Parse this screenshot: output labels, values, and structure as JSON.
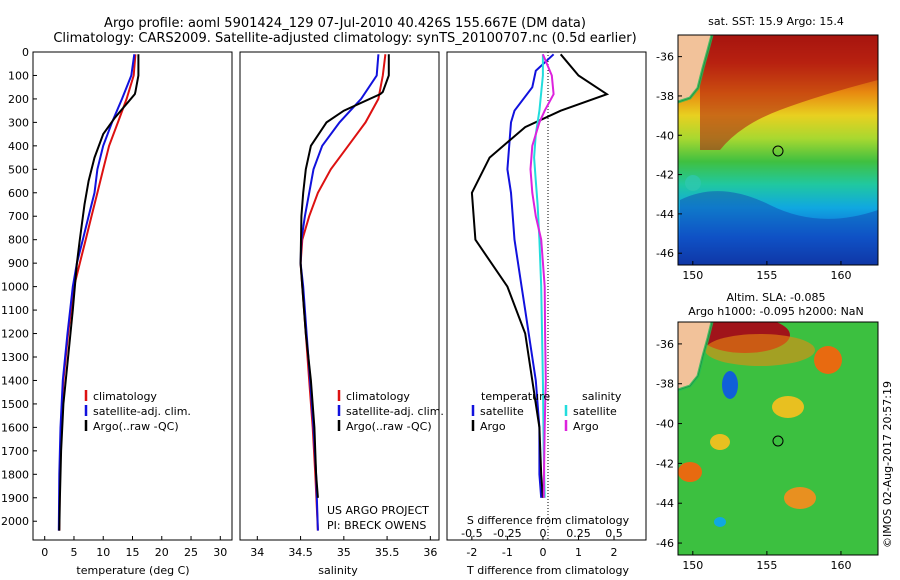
{
  "title_line1": "Argo profile: aoml 5901424_129 07-Jul-2010 40.426S 155.667E (DM data)",
  "title_line2": "Climatology: CARS2009. Satellite-adjusted climatology: synTS_20100707.nc (0.5d earlier)",
  "colors": {
    "climatology": "#dd1111",
    "satellite": "#1111dd",
    "argo": "#000000",
    "sat_salinity": "#22dddd",
    "argo_salinity": "#dd22dd",
    "land": "#f2c29a",
    "coast": "#22bb55"
  },
  "chart_data": [
    {
      "type": "line",
      "xlabel": "temperature (deg C)",
      "xlim": [
        -2,
        32
      ],
      "ylim": [
        2080,
        0
      ],
      "xticks": [
        "0",
        "5",
        "10",
        "15",
        "20",
        "25",
        "30"
      ],
      "yticks": [
        "0",
        "100",
        "200",
        "300",
        "400",
        "500",
        "600",
        "700",
        "800",
        "900",
        "1000",
        "1100",
        "1200",
        "1300",
        "1400",
        "1500",
        "1600",
        "1700",
        "1800",
        "1900",
        "2000"
      ],
      "legend": [
        "climatology",
        "satellite-adj. clim.",
        "Argo(..raw -QC)"
      ],
      "series": [
        {
          "name": "climatology",
          "color": "#dd1111",
          "x": [
            15.5,
            15.2,
            14.0,
            12.5,
            11.0,
            10.0,
            9.0,
            8.0,
            7.0,
            6.0,
            5.0,
            4.0,
            3.2,
            2.8,
            2.6,
            2.5
          ],
          "y": [
            10,
            100,
            200,
            300,
            400,
            500,
            600,
            700,
            800,
            900,
            1000,
            1200,
            1400,
            1600,
            1800,
            2040
          ]
        },
        {
          "name": "satellite-adj. clim.",
          "color": "#1111dd",
          "x": [
            15.3,
            14.8,
            13.2,
            11.5,
            10.0,
            9.0,
            8.5,
            7.5,
            6.5,
            5.5,
            4.8,
            3.9,
            3.1,
            2.7,
            2.5,
            2.4
          ],
          "y": [
            10,
            100,
            200,
            300,
            400,
            500,
            600,
            700,
            800,
            900,
            1000,
            1200,
            1400,
            1600,
            1800,
            2040
          ]
        },
        {
          "name": "Argo(..raw -QC)",
          "color": "#000000",
          "x": [
            16.0,
            16.0,
            15.5,
            15.4,
            12.0,
            10.0,
            8.5,
            7.5,
            6.8,
            6.0,
            5.5,
            4.8,
            4.0,
            3.2,
            2.8,
            2.6,
            2.5
          ],
          "y": [
            10,
            100,
            170,
            180,
            280,
            350,
            450,
            550,
            650,
            800,
            900,
            1100,
            1300,
            1500,
            1700,
            1900,
            2040
          ]
        }
      ]
    },
    {
      "type": "line",
      "xlabel": "salinity",
      "xlim": [
        33.8,
        36.1
      ],
      "ylim": [
        2080,
        0
      ],
      "xticks": [
        "34",
        "34.5",
        "35",
        "35.5",
        "36"
      ],
      "legend": [
        "climatology",
        "satellite-adj. clim.",
        "Argo(..raw -QC)"
      ],
      "annotations": [
        "US ARGO PROJECT",
        "PI: BRECK OWENS"
      ],
      "series": [
        {
          "name": "climatology",
          "color": "#dd1111",
          "x": [
            35.48,
            35.45,
            35.4,
            35.25,
            35.05,
            34.85,
            34.7,
            34.6,
            34.52,
            34.5,
            34.52,
            34.56,
            34.6,
            34.64,
            34.67,
            34.7
          ],
          "y": [
            10,
            100,
            200,
            300,
            400,
            500,
            600,
            700,
            800,
            900,
            1000,
            1200,
            1400,
            1600,
            1800,
            2040
          ]
        },
        {
          "name": "satellite-adj. clim.",
          "color": "#1111dd",
          "x": [
            35.4,
            35.38,
            35.2,
            34.95,
            34.75,
            34.65,
            34.6,
            34.55,
            34.51,
            34.5,
            34.53,
            34.57,
            34.61,
            34.65,
            34.68,
            34.7
          ],
          "y": [
            10,
            100,
            200,
            300,
            400,
            500,
            600,
            700,
            800,
            900,
            1000,
            1200,
            1400,
            1600,
            1800,
            2040
          ]
        },
        {
          "name": "Argo(..raw -QC)",
          "color": "#000000",
          "x": [
            35.52,
            35.52,
            35.45,
            35.42,
            35.0,
            34.8,
            34.62,
            34.56,
            34.53,
            34.51,
            34.5,
            34.52,
            34.56,
            34.62,
            34.66,
            34.68,
            34.7
          ],
          "y": [
            10,
            100,
            170,
            180,
            250,
            300,
            400,
            500,
            600,
            700,
            900,
            1000,
            1200,
            1400,
            1600,
            1800,
            1900
          ]
        }
      ]
    },
    {
      "type": "line",
      "xlabel": "T difference from climatology",
      "x2label": "S difference from climatology",
      "xlim": [
        -2.7,
        2.9
      ],
      "ylim": [
        2080,
        0
      ],
      "xticks": [
        "-2",
        "-1",
        "0",
        "1",
        "2"
      ],
      "x2ticks": [
        "-0.5",
        "-0.25",
        "0",
        "0.25",
        "0.5"
      ],
      "legend_groups": [
        "temperature",
        "salinity"
      ],
      "legend": [
        "satellite",
        "Argo",
        "satellite",
        "Argo"
      ],
      "series": [
        {
          "name": "satellite",
          "color": "#1111dd",
          "x": [
            0.3,
            -0.2,
            -0.3,
            -0.8,
            -0.9,
            -0.95,
            -1.0,
            -0.9,
            -0.8,
            -0.6,
            -0.5,
            -0.4,
            -0.2,
            -0.1,
            -0.1,
            -0.05
          ],
          "y": [
            10,
            80,
            150,
            250,
            300,
            400,
            500,
            600,
            800,
            1000,
            1100,
            1200,
            1400,
            1600,
            1800,
            1900
          ]
        },
        {
          "name": "Argo",
          "color": "#000000",
          "x": [
            0.5,
            1.0,
            1.8,
            0.5,
            -0.5,
            -1.5,
            -2.0,
            -1.9,
            -1.0,
            -0.5,
            -0.3,
            -0.2,
            -0.1,
            -0.05,
            0.0
          ],
          "y": [
            10,
            100,
            180,
            250,
            320,
            450,
            600,
            800,
            1000,
            1200,
            1400,
            1500,
            1600,
            1800,
            1900
          ]
        },
        {
          "name": "satellite",
          "color": "#22dddd",
          "x": [
            0.0,
            0.0,
            -0.1,
            -0.2,
            -0.25,
            -0.2,
            -0.15,
            -0.1,
            -0.05,
            0.0,
            0.02,
            0.05
          ],
          "y": [
            10,
            100,
            250,
            350,
            450,
            550,
            650,
            800,
            1000,
            1400,
            1700,
            1900
          ]
        },
        {
          "name": "Argo",
          "color": "#dd22dd",
          "x": [
            0.0,
            0.25,
            0.3,
            0.05,
            -0.1,
            -0.3,
            -0.35,
            -0.3,
            -0.2,
            -0.05,
            0.05,
            0.06,
            0.08,
            0.05,
            0.03,
            0.02
          ],
          "y": [
            10,
            100,
            180,
            250,
            300,
            400,
            500,
            600,
            700,
            800,
            1000,
            1200,
            1400,
            1600,
            1800,
            1900
          ]
        }
      ]
    }
  ],
  "map_top": {
    "title": "sat. SST: 15.9 Argo: 15.4",
    "xticks": [
      "150",
      "155",
      "160"
    ],
    "yticks": [
      "-36",
      "-38",
      "-40",
      "-42",
      "-44",
      "-46"
    ]
  },
  "map_bottom": {
    "title_line1": "Altim. SLA: -0.085",
    "title_line2": "Argo h1000: -0.095 h2000: NaN",
    "xticks": [
      "150",
      "155",
      "160"
    ],
    "yticks": [
      "-36",
      "-38",
      "-40",
      "-42",
      "-44",
      "-46"
    ]
  },
  "credit": "©IMOS 02-Aug-2017 20:57:19"
}
